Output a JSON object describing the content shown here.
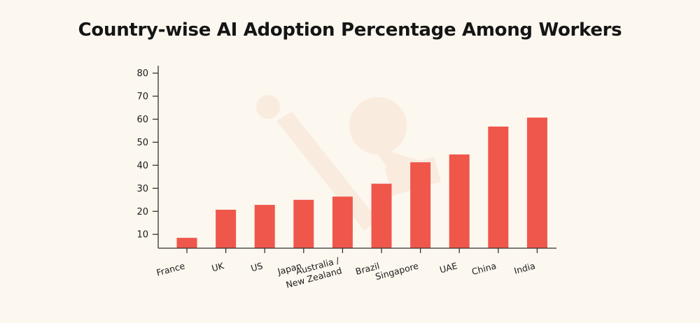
{
  "chart_data": {
    "type": "bar",
    "title": "Country-wise AI Adoption Percentage Among Workers",
    "xlabel": "",
    "ylabel": "",
    "categories": [
      [
        "France"
      ],
      [
        "UK"
      ],
      [
        "US"
      ],
      [
        "Japan"
      ],
      [
        "Australia /",
        "New Zealand"
      ],
      [
        "Brazil"
      ],
      [
        "Singapore"
      ],
      [
        "UAE"
      ],
      [
        "China"
      ],
      [
        "India"
      ]
    ],
    "values": [
      8.5,
      20.7,
      22.8,
      25,
      26.4,
      32,
      41.3,
      44.7,
      56.8,
      60.7
    ],
    "ylim": [
      4,
      82
    ],
    "yticks": [
      10,
      20,
      30,
      40,
      50,
      60,
      70,
      80
    ],
    "grid": false,
    "legend": "none",
    "bar_color": "#ef574b",
    "axis_color": "#333333"
  }
}
